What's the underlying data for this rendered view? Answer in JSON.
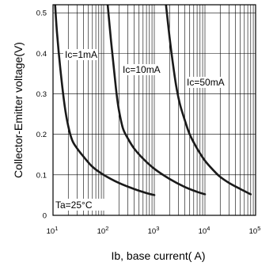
{
  "chart_data": {
    "type": "line",
    "title": "",
    "xlabel": "Ib, base current(  A)",
    "ylabel": "Collector-Emitter voltage(V)",
    "x_scale": "log",
    "xlim": [
      10,
      100000
    ],
    "ylim": [
      0,
      0.52
    ],
    "grid": true,
    "x_ticks": [
      {
        "base": "10",
        "exp": "1"
      },
      {
        "base": "10",
        "exp": "2"
      },
      {
        "base": "10",
        "exp": "3"
      },
      {
        "base": "10",
        "exp": "4"
      },
      {
        "base": "10",
        "exp": "5"
      }
    ],
    "y_ticks": [
      {
        "value": 0,
        "label": "0"
      },
      {
        "value": 0.1,
        "label": "0.1"
      },
      {
        "value": 0.2,
        "label": "0.2"
      },
      {
        "value": 0.3,
        "label": "0.3"
      },
      {
        "value": 0.4,
        "label": "0.4"
      },
      {
        "value": 0.5,
        "label": "0.5"
      }
    ],
    "annotation": "Ta=25°C",
    "series": [
      {
        "name": "Ic=1mA",
        "x": [
          11,
          12,
          14,
          17,
          20,
          24,
          30,
          40,
          60,
          100,
          200,
          400,
          700,
          1000
        ],
        "y": [
          0.52,
          0.45,
          0.36,
          0.27,
          0.22,
          0.185,
          0.165,
          0.145,
          0.12,
          0.1,
          0.08,
          0.065,
          0.055,
          0.05
        ]
      },
      {
        "name": "Ic=10mA",
        "x": [
          120,
          140,
          160,
          180,
          200,
          240,
          300,
          400,
          600,
          1000,
          2000,
          4000,
          7000,
          10000
        ],
        "y": [
          0.52,
          0.43,
          0.36,
          0.3,
          0.26,
          0.215,
          0.19,
          0.165,
          0.14,
          0.115,
          0.09,
          0.07,
          0.058,
          0.052
        ]
      },
      {
        "name": "Ic=50mA",
        "x": [
          1700,
          2000,
          2300,
          2700,
          3200,
          4000,
          5000,
          7000,
          10000,
          15000,
          20000,
          30000,
          50000,
          80000
        ],
        "y": [
          0.52,
          0.44,
          0.38,
          0.32,
          0.275,
          0.235,
          0.2,
          0.165,
          0.135,
          0.11,
          0.095,
          0.08,
          0.065,
          0.052
        ]
      }
    ]
  }
}
